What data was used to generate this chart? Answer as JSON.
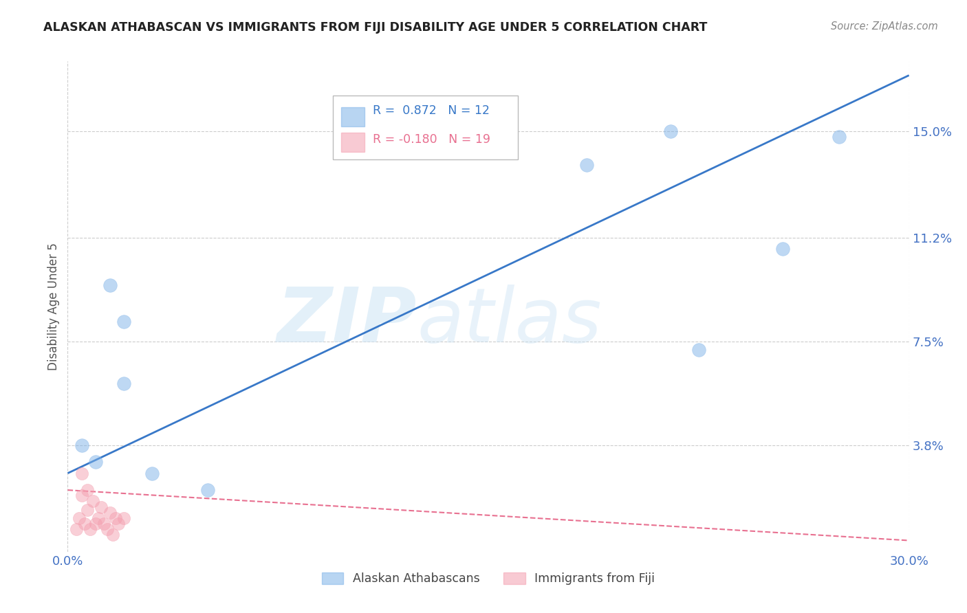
{
  "title": "ALASKAN ATHABASCAN VS IMMIGRANTS FROM FIJI DISABILITY AGE UNDER 5 CORRELATION CHART",
  "source": "Source: ZipAtlas.com",
  "ylabel": "Disability Age Under 5",
  "xlim": [
    0.0,
    0.3
  ],
  "ylim": [
    0.0,
    0.175
  ],
  "yticks": [
    0.038,
    0.075,
    0.112,
    0.15
  ],
  "ytick_labels": [
    "3.8%",
    "7.5%",
    "11.2%",
    "15.0%"
  ],
  "xticks": [
    0.0,
    0.075,
    0.15,
    0.225,
    0.3
  ],
  "xtick_labels": [
    "0.0%",
    "",
    "",
    "",
    "30.0%"
  ],
  "background_color": "#ffffff",
  "watermark_zip": "ZIP",
  "watermark_atlas": "atlas",
  "blue_color": "#7fb3e8",
  "pink_color": "#f4a0b0",
  "blue_line_color": "#3878c8",
  "pink_line_color": "#e87090",
  "legend_R1": "0.872",
  "legend_N1": "12",
  "legend_R2": "-0.180",
  "legend_N2": "19",
  "blue_scatter_x": [
    0.005,
    0.01,
    0.015,
    0.02,
    0.03,
    0.05,
    0.02,
    0.185,
    0.215,
    0.255,
    0.275,
    0.225
  ],
  "blue_scatter_y": [
    0.038,
    0.032,
    0.095,
    0.06,
    0.028,
    0.022,
    0.082,
    0.138,
    0.15,
    0.108,
    0.148,
    0.072
  ],
  "pink_scatter_x": [
    0.003,
    0.004,
    0.005,
    0.006,
    0.007,
    0.008,
    0.009,
    0.01,
    0.011,
    0.012,
    0.013,
    0.014,
    0.015,
    0.016,
    0.017,
    0.018,
    0.005,
    0.007,
    0.02
  ],
  "pink_scatter_y": [
    0.008,
    0.012,
    0.02,
    0.01,
    0.015,
    0.008,
    0.018,
    0.01,
    0.012,
    0.016,
    0.01,
    0.008,
    0.014,
    0.006,
    0.012,
    0.01,
    0.028,
    0.022,
    0.012
  ],
  "blue_line_x_start": 0.0,
  "blue_line_x_end": 0.3,
  "blue_line_y_start": 0.028,
  "blue_line_y_end": 0.17,
  "pink_line_x_start": 0.0,
  "pink_line_x_end": 0.3,
  "pink_line_y_start": 0.022,
  "pink_line_y_end": 0.004,
  "grid_color": "#cccccc",
  "legend_box_color": "#dddddd",
  "label_color": "#4472C4",
  "title_color": "#222222",
  "source_color": "#888888",
  "ylabel_color": "#555555"
}
